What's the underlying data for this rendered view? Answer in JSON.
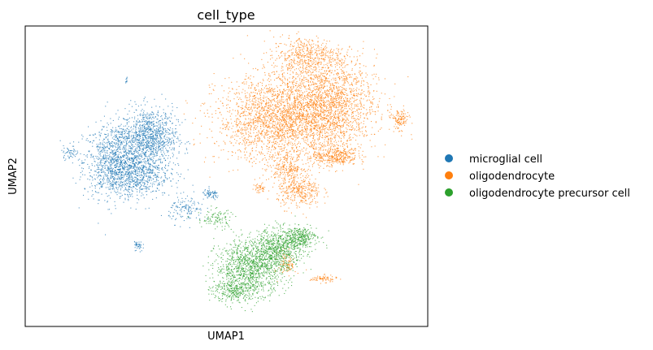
{
  "chart_data": {
    "type": "scatter",
    "title": "cell_type",
    "xlabel": "UMAP1",
    "ylabel": "UMAP2",
    "grid": false,
    "ticks": false,
    "legend_position": "right",
    "xlim": [
      0,
      100
    ],
    "ylim": [
      0,
      100
    ],
    "series": [
      {
        "name": "microglial cell",
        "color": "#1f77b4",
        "clusters": [
          {
            "cx": 22,
            "cy": 55,
            "rx": 7,
            "ry": 11,
            "n": 900
          },
          {
            "cx": 31,
            "cy": 63,
            "rx": 6,
            "ry": 9,
            "n": 1000
          },
          {
            "cx": 27,
            "cy": 51,
            "rx": 8,
            "ry": 7,
            "n": 700
          },
          {
            "cx": 24,
            "cy": 64,
            "rx": 2,
            "ry": 3,
            "n": 60
          },
          {
            "cx": 11,
            "cy": 58,
            "rx": 2,
            "ry": 2,
            "n": 50
          },
          {
            "cx": 40,
            "cy": 39,
            "rx": 4,
            "ry": 4,
            "n": 130
          },
          {
            "cx": 46,
            "cy": 44,
            "rx": 2,
            "ry": 1.5,
            "n": 70
          },
          {
            "cx": 28,
            "cy": 27,
            "rx": 1,
            "ry": 2,
            "n": 40
          },
          {
            "cx": 25,
            "cy": 82,
            "rx": 0.3,
            "ry": 1,
            "n": 10
          }
        ]
      },
      {
        "name": "oligodendrocyte",
        "color": "#ff7f0e",
        "clusters": [
          {
            "cx": 63,
            "cy": 69,
            "rx": 14,
            "ry": 13,
            "n": 2200
          },
          {
            "cx": 75,
            "cy": 74,
            "rx": 11,
            "ry": 14,
            "n": 1800
          },
          {
            "cx": 70,
            "cy": 90,
            "rx": 8,
            "ry": 6,
            "n": 500
          },
          {
            "cx": 77,
            "cy": 57,
            "rx": 5,
            "ry": 3,
            "n": 350
          },
          {
            "cx": 68,
            "cy": 45,
            "rx": 5,
            "ry": 5,
            "n": 350
          },
          {
            "cx": 65,
            "cy": 53,
            "rx": 4,
            "ry": 4,
            "n": 200
          },
          {
            "cx": 93,
            "cy": 69,
            "rx": 2,
            "ry": 3,
            "n": 120
          },
          {
            "cx": 58,
            "cy": 46,
            "rx": 1.5,
            "ry": 1.5,
            "n": 40
          },
          {
            "cx": 65,
            "cy": 21,
            "rx": 2,
            "ry": 4,
            "n": 90
          },
          {
            "cx": 74,
            "cy": 16,
            "rx": 3,
            "ry": 1,
            "n": 70
          }
        ]
      },
      {
        "name": "oligodendrocyte precursor cell",
        "color": "#2ca02c",
        "clusters": [
          {
            "cx": 56,
            "cy": 20,
            "rx": 8,
            "ry": 8,
            "n": 1100
          },
          {
            "cx": 63,
            "cy": 26,
            "rx": 6,
            "ry": 6,
            "n": 650
          },
          {
            "cx": 68,
            "cy": 30,
            "rx": 4,
            "ry": 3,
            "n": 300
          },
          {
            "cx": 52,
            "cy": 12,
            "rx": 5,
            "ry": 4,
            "n": 300
          },
          {
            "cx": 47,
            "cy": 36,
            "rx": 4,
            "ry": 3,
            "n": 100
          }
        ]
      }
    ]
  }
}
